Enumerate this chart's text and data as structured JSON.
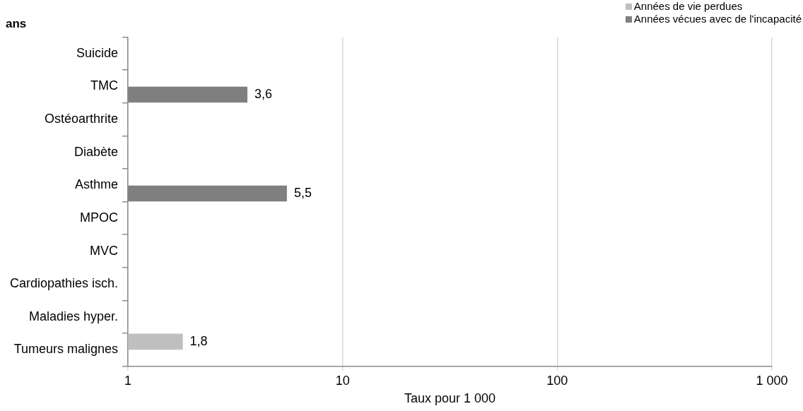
{
  "chart_data": {
    "type": "bar",
    "orientation": "horizontal",
    "title": "ans",
    "xlabel": "Taux pour 1 000",
    "categories": [
      "Suicide",
      "TMC",
      "Ostéoarthrite",
      "Diabète",
      "Asthme",
      "MPOC",
      "MVC",
      "Cardiopathies isch.",
      "Maladies hyper.",
      "Tumeurs malignes"
    ],
    "series": [
      {
        "name": "Années de vie perdues",
        "color": "#bfbfbf",
        "values": [
          null,
          null,
          null,
          null,
          null,
          null,
          null,
          null,
          null,
          1.8
        ],
        "value_labels": [
          null,
          null,
          null,
          null,
          null,
          null,
          null,
          null,
          null,
          "1,8"
        ]
      },
      {
        "name": "Années vécues avec de l'incapacité",
        "color": "#7f7f7f",
        "values": [
          null,
          3.6,
          null,
          null,
          5.5,
          null,
          null,
          null,
          null,
          null
        ],
        "value_labels": [
          null,
          "3,6",
          null,
          null,
          "5,5",
          null,
          null,
          null,
          null,
          null
        ]
      }
    ],
    "log": "x",
    "xlim": [
      1,
      1000
    ],
    "xticks": [
      1,
      10,
      100,
      {
        "value": 1000,
        "label": "1 000"
      }
    ],
    "grid": "x",
    "legend": "top right"
  }
}
